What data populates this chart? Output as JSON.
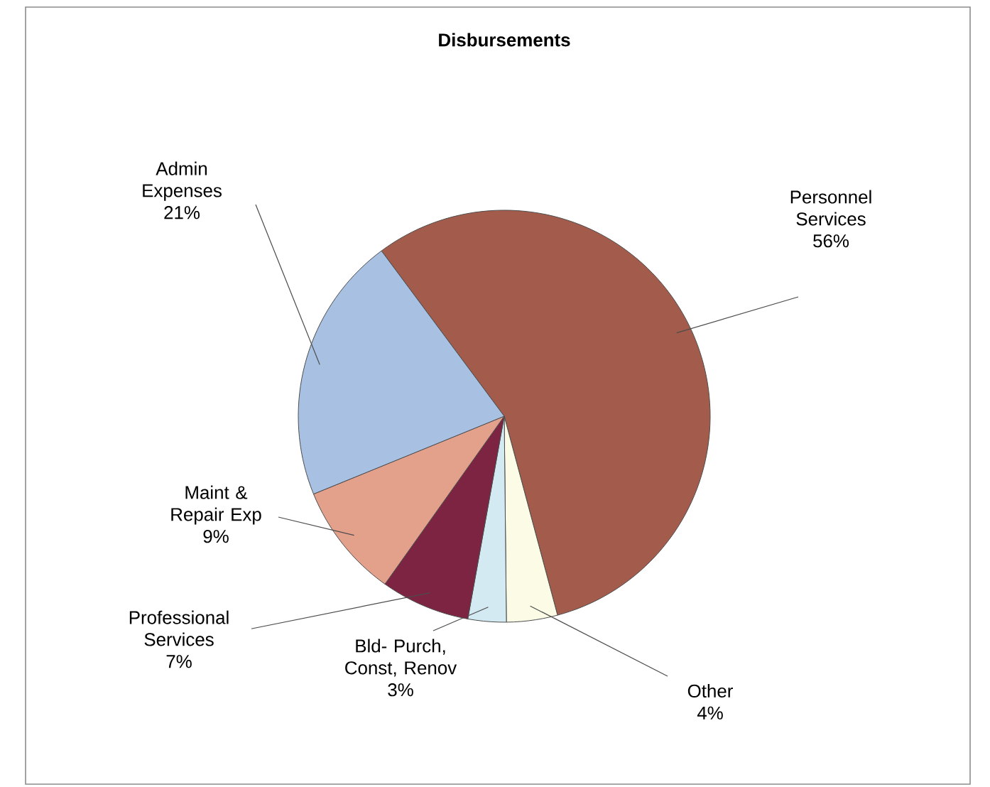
{
  "chart_data": {
    "type": "pie",
    "title": "Disbursements",
    "categories": [
      "Personnel Services",
      "Other",
      "Bld- Purch, Const, Renov",
      "Professional Services",
      "Maint & Repair Exp",
      "Admin Expenses"
    ],
    "values": [
      56,
      4,
      3,
      7,
      9,
      21
    ],
    "value_labels": [
      "56%",
      "4%",
      "3%",
      "7%",
      "9%",
      "21%"
    ],
    "colors": [
      "#a35c4c",
      "#fcfbe6",
      "#d3eaf3",
      "#7d2443",
      "#e3a08b",
      "#a8c0e2"
    ]
  }
}
